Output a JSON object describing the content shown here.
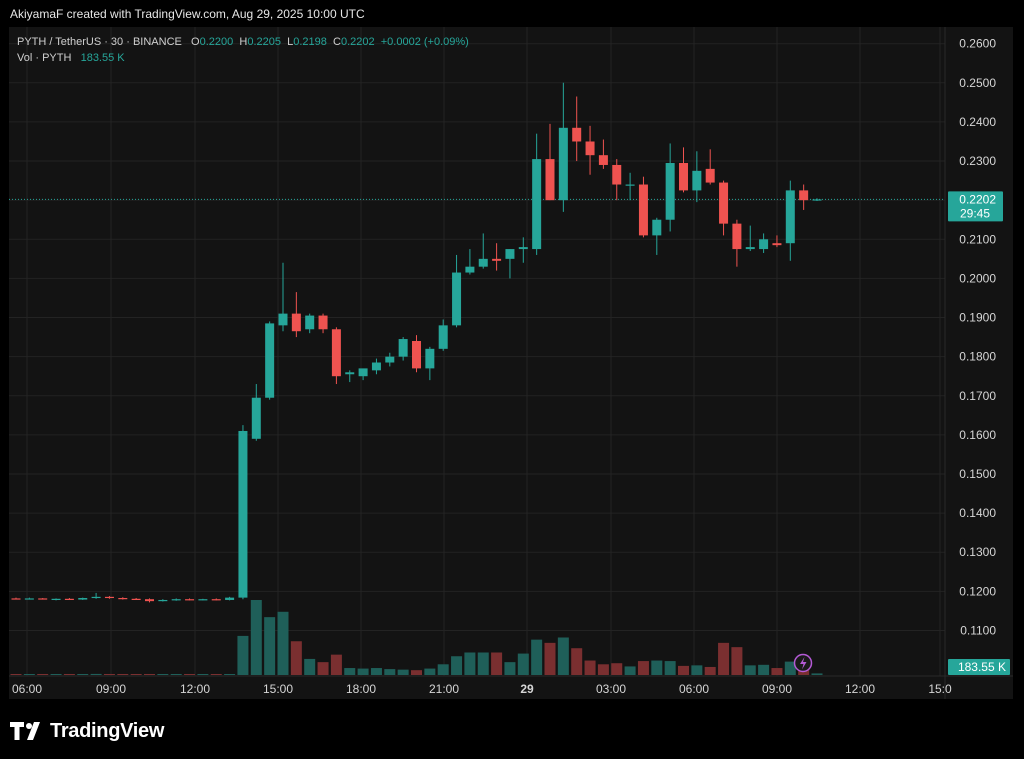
{
  "header": {
    "attribution": "AkiyamaF created with TradingView.com, Aug 29, 2025 10:00 UTC"
  },
  "legend": {
    "symbol": "PYTH / TetherUS · 30 · BINANCE",
    "o_label": "O",
    "o": "0.2200",
    "h_label": "H",
    "h": "0.2205",
    "l_label": "L",
    "l": "0.2198",
    "c_label": "C",
    "c": "0.2202",
    "change": "+0.0002 (+0.09%)",
    "vol_label": "Vol · PYTH",
    "vol_value": "183.55 K"
  },
  "badges": {
    "price": "0.2202",
    "countdown": "29:45",
    "volume": "183.55 K"
  },
  "footer": {
    "brand": "TradingView"
  },
  "colors": {
    "up": "#26a69a",
    "down": "#ef5350",
    "vol_up": "#1f5f59",
    "vol_down": "#7a2f30",
    "bg": "#131313"
  },
  "chart_data": {
    "type": "candlestick",
    "y_axis_ticks": [
      "0.2600",
      "0.2500",
      "0.2400",
      "0.2300",
      "0.2200",
      "0.2100",
      "0.2000",
      "0.1900",
      "0.1800",
      "0.1700",
      "0.1600",
      "0.1500",
      "0.1400",
      "0.1300",
      "0.1200",
      "0.1100"
    ],
    "ylim": [
      0.1045,
      0.2635
    ],
    "x_axis_ticks": [
      "06:00",
      "09:00",
      "12:00",
      "15:00",
      "18:00",
      "21:00",
      "29",
      "03:00",
      "06:00",
      "09:00",
      "12:00",
      "15:0"
    ],
    "last_price": 0.2202,
    "candles": [
      {
        "o": 0.1182,
        "h": 0.1184,
        "l": 0.118,
        "c": 0.1181,
        "v": 1.5
      },
      {
        "o": 0.1181,
        "h": 0.1184,
        "l": 0.1179,
        "c": 0.1182,
        "v": 1.2
      },
      {
        "o": 0.1182,
        "h": 0.1183,
        "l": 0.1179,
        "c": 0.118,
        "v": 1.3
      },
      {
        "o": 0.118,
        "h": 0.1182,
        "l": 0.1177,
        "c": 0.1181,
        "v": 1.1
      },
      {
        "o": 0.1181,
        "h": 0.1183,
        "l": 0.1178,
        "c": 0.1179,
        "v": 1.4
      },
      {
        "o": 0.1179,
        "h": 0.1184,
        "l": 0.1178,
        "c": 0.1183,
        "v": 1.6
      },
      {
        "o": 0.1183,
        "h": 0.1196,
        "l": 0.1181,
        "c": 0.1186,
        "v": 2.0
      },
      {
        "o": 0.1186,
        "h": 0.1188,
        "l": 0.1181,
        "c": 0.1183,
        "v": 1.5
      },
      {
        "o": 0.1183,
        "h": 0.1185,
        "l": 0.1179,
        "c": 0.1181,
        "v": 1.3
      },
      {
        "o": 0.1181,
        "h": 0.1183,
        "l": 0.1178,
        "c": 0.118,
        "v": 1.2
      },
      {
        "o": 0.118,
        "h": 0.1182,
        "l": 0.1172,
        "c": 0.1175,
        "v": 1.5
      },
      {
        "o": 0.1175,
        "h": 0.118,
        "l": 0.1174,
        "c": 0.1178,
        "v": 1.3
      },
      {
        "o": 0.1178,
        "h": 0.1182,
        "l": 0.1176,
        "c": 0.118,
        "v": 1.2
      },
      {
        "o": 0.118,
        "h": 0.1182,
        "l": 0.1177,
        "c": 0.1179,
        "v": 1.1
      },
      {
        "o": 0.1179,
        "h": 0.1181,
        "l": 0.1177,
        "c": 0.118,
        "v": 1.2
      },
      {
        "o": 0.118,
        "h": 0.1182,
        "l": 0.1177,
        "c": 0.1178,
        "v": 1.0
      },
      {
        "o": 0.1178,
        "h": 0.1186,
        "l": 0.1177,
        "c": 0.1184,
        "v": 1.5
      },
      {
        "o": 0.1184,
        "h": 0.1625,
        "l": 0.118,
        "c": 0.161,
        "v": 73
      },
      {
        "o": 0.159,
        "h": 0.173,
        "l": 0.1585,
        "c": 0.1695,
        "v": 140
      },
      {
        "o": 0.1695,
        "h": 0.189,
        "l": 0.169,
        "c": 0.1885,
        "v": 108
      },
      {
        "o": 0.188,
        "h": 0.204,
        "l": 0.1865,
        "c": 0.191,
        "v": 118
      },
      {
        "o": 0.191,
        "h": 0.1965,
        "l": 0.185,
        "c": 0.1865,
        "v": 63
      },
      {
        "o": 0.187,
        "h": 0.191,
        "l": 0.186,
        "c": 0.1905,
        "v": 30
      },
      {
        "o": 0.1905,
        "h": 0.191,
        "l": 0.186,
        "c": 0.187,
        "v": 24
      },
      {
        "o": 0.187,
        "h": 0.1875,
        "l": 0.173,
        "c": 0.175,
        "v": 38
      },
      {
        "o": 0.1755,
        "h": 0.1765,
        "l": 0.1735,
        "c": 0.176,
        "v": 13
      },
      {
        "o": 0.175,
        "h": 0.176,
        "l": 0.174,
        "c": 0.177,
        "v": 12
      },
      {
        "o": 0.1765,
        "h": 0.1795,
        "l": 0.1755,
        "c": 0.1785,
        "v": 13
      },
      {
        "o": 0.1785,
        "h": 0.181,
        "l": 0.1775,
        "c": 0.18,
        "v": 11
      },
      {
        "o": 0.18,
        "h": 0.185,
        "l": 0.179,
        "c": 0.1845,
        "v": 10
      },
      {
        "o": 0.184,
        "h": 0.1855,
        "l": 0.176,
        "c": 0.177,
        "v": 9
      },
      {
        "o": 0.177,
        "h": 0.1825,
        "l": 0.174,
        "c": 0.182,
        "v": 12
      },
      {
        "o": 0.182,
        "h": 0.1895,
        "l": 0.1815,
        "c": 0.188,
        "v": 20
      },
      {
        "o": 0.188,
        "h": 0.206,
        "l": 0.1875,
        "c": 0.2015,
        "v": 35
      },
      {
        "o": 0.2015,
        "h": 0.2075,
        "l": 0.201,
        "c": 0.203,
        "v": 42
      },
      {
        "o": 0.203,
        "h": 0.2115,
        "l": 0.2025,
        "c": 0.205,
        "v": 42
      },
      {
        "o": 0.205,
        "h": 0.209,
        "l": 0.202,
        "c": 0.2045,
        "v": 42
      },
      {
        "o": 0.205,
        "h": 0.2075,
        "l": 0.2,
        "c": 0.2075,
        "v": 24
      },
      {
        "o": 0.2075,
        "h": 0.2105,
        "l": 0.204,
        "c": 0.208,
        "v": 40
      },
      {
        "o": 0.2075,
        "h": 0.237,
        "l": 0.206,
        "c": 0.2305,
        "v": 66
      },
      {
        "o": 0.2305,
        "h": 0.2395,
        "l": 0.22,
        "c": 0.22,
        "v": 60
      },
      {
        "o": 0.22,
        "h": 0.25,
        "l": 0.217,
        "c": 0.2385,
        "v": 70
      },
      {
        "o": 0.2385,
        "h": 0.2465,
        "l": 0.23,
        "c": 0.235,
        "v": 50
      },
      {
        "o": 0.235,
        "h": 0.239,
        "l": 0.2265,
        "c": 0.2315,
        "v": 27
      },
      {
        "o": 0.2315,
        "h": 0.2355,
        "l": 0.228,
        "c": 0.229,
        "v": 20
      },
      {
        "o": 0.229,
        "h": 0.2305,
        "l": 0.22,
        "c": 0.224,
        "v": 22
      },
      {
        "o": 0.224,
        "h": 0.227,
        "l": 0.22,
        "c": 0.224,
        "v": 16
      },
      {
        "o": 0.224,
        "h": 0.226,
        "l": 0.2105,
        "c": 0.211,
        "v": 26
      },
      {
        "o": 0.211,
        "h": 0.2155,
        "l": 0.206,
        "c": 0.215,
        "v": 27
      },
      {
        "o": 0.215,
        "h": 0.2345,
        "l": 0.212,
        "c": 0.2295,
        "v": 26
      },
      {
        "o": 0.2295,
        "h": 0.2335,
        "l": 0.222,
        "c": 0.2225,
        "v": 17
      },
      {
        "o": 0.2225,
        "h": 0.2325,
        "l": 0.2195,
        "c": 0.2275,
        "v": 18
      },
      {
        "o": 0.228,
        "h": 0.233,
        "l": 0.224,
        "c": 0.2245,
        "v": 15
      },
      {
        "o": 0.2245,
        "h": 0.225,
        "l": 0.211,
        "c": 0.214,
        "v": 60
      },
      {
        "o": 0.214,
        "h": 0.215,
        "l": 0.203,
        "c": 0.2075,
        "v": 52
      },
      {
        "o": 0.2075,
        "h": 0.2135,
        "l": 0.207,
        "c": 0.208,
        "v": 18
      },
      {
        "o": 0.2075,
        "h": 0.2115,
        "l": 0.2065,
        "c": 0.21,
        "v": 19
      },
      {
        "o": 0.209,
        "h": 0.211,
        "l": 0.208,
        "c": 0.2085,
        "v": 13
      },
      {
        "o": 0.209,
        "h": 0.225,
        "l": 0.2045,
        "c": 0.2225,
        "v": 25
      },
      {
        "o": 0.2225,
        "h": 0.224,
        "l": 0.2175,
        "c": 0.22,
        "v": 22
      },
      {
        "o": 0.22,
        "h": 0.2205,
        "l": 0.2198,
        "c": 0.2202,
        "v": 3
      }
    ]
  }
}
